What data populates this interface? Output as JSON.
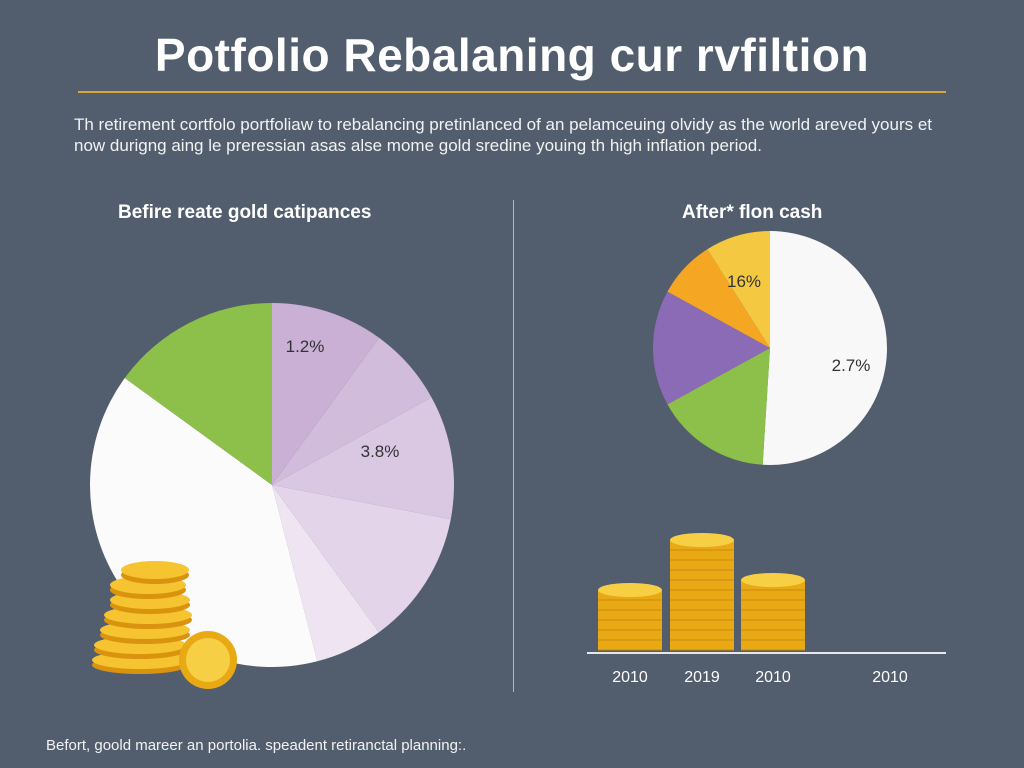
{
  "title": "Potfolio Rebalaning cur rvfiltion",
  "intro": "Th retirement cortfolo portfoliaw to rebalancing pretinlanced of an pelamceuing olvidy as the world areved yours et now durigng aing le preressian asas alse mome gold sredine youing th high inflation period.",
  "footer": "Befort, goold mareer an portolia. speadent retiranctal planning:.",
  "chart_data": [
    {
      "type": "pie",
      "title": "Befire reate gold catipances",
      "slices": [
        {
          "label": "1.2%",
          "share": 0.1,
          "color": "#c9b0d4"
        },
        {
          "label": "",
          "share": 0.07,
          "color": "#d2bcdc"
        },
        {
          "label": "3.8%",
          "share": 0.11,
          "color": "#dac8e2"
        },
        {
          "label": "",
          "share": 0.12,
          "color": "#e3d4e9"
        },
        {
          "label": "",
          "share": 0.06,
          "color": "#efe5f2"
        },
        {
          "label": "",
          "share": 0.39,
          "color": "#fbfbfb"
        },
        {
          "label": "",
          "share": 0.15,
          "color": "#8cc04a"
        }
      ]
    },
    {
      "type": "pie",
      "title": "After* flon cash",
      "slices": [
        {
          "label": "2.7%",
          "share": 0.51,
          "color": "#f8f8f8"
        },
        {
          "label": "",
          "share": 0.16,
          "color": "#8cc04a"
        },
        {
          "label": "",
          "share": 0.16,
          "color": "#8b6bb5"
        },
        {
          "label": "",
          "share": 0.08,
          "color": "#f5a623"
        },
        {
          "label": "16%",
          "share": 0.09,
          "color": "#f5c842"
        }
      ]
    },
    {
      "type": "bar",
      "categories": [
        "2010",
        "2019",
        "2010",
        "2010"
      ],
      "values": [
        6,
        11,
        7,
        0
      ],
      "color": "#f2b320"
    }
  ]
}
